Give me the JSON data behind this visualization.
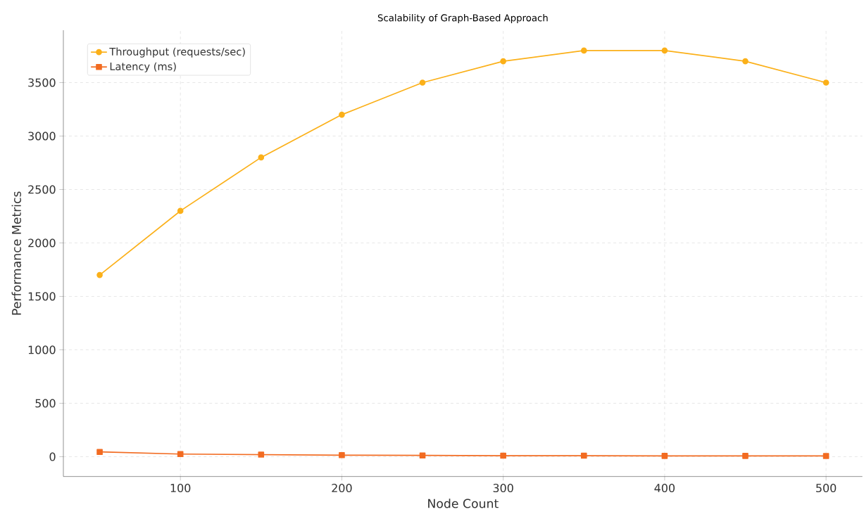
{
  "chart_data": {
    "type": "line",
    "title": "Scalability of Graph-Based Approach",
    "xlabel": "Node Count",
    "ylabel": "Performance Metrics",
    "x": [
      50,
      100,
      150,
      200,
      250,
      300,
      350,
      400,
      450,
      500
    ],
    "series": [
      {
        "name": "Throughput (requests/sec)",
        "color": "#fbb019",
        "marker": "circle",
        "values": [
          1700,
          2300,
          2800,
          3200,
          3500,
          3700,
          3800,
          3800,
          3700,
          3500
        ]
      },
      {
        "name": "Latency (ms)",
        "color": "#f26b21",
        "marker": "square",
        "values": [
          45,
          25,
          20,
          15,
          12,
          10,
          10,
          8,
          8,
          7
        ]
      }
    ],
    "xlim": [
      27.5,
      522.5
    ],
    "ylim": [
      -185,
      3990
    ],
    "xticks": [
      100,
      200,
      300,
      400,
      500
    ],
    "yticks": [
      0,
      500,
      1000,
      1500,
      2000,
      2500,
      3000,
      3500
    ],
    "grid": true,
    "legend": "top left",
    "line_style": "solid"
  }
}
